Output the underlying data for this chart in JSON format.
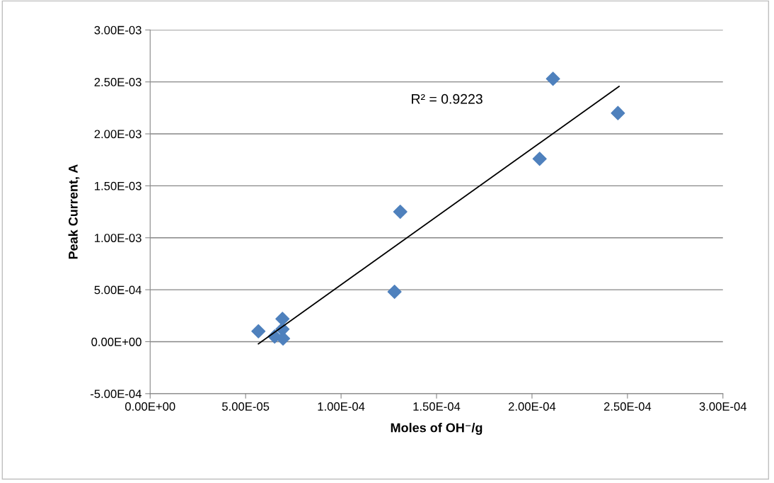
{
  "chart_data": {
    "type": "scatter",
    "xlabel": "Moles of OH⁻/g",
    "ylabel": "Peak Current, A",
    "series": [
      {
        "color": "#4f81bd",
        "marker": "diamond",
        "x": [
          5.67e-05,
          6.93e-05,
          6.93e-05,
          6.52e-05,
          6.96e-05,
          0.000128,
          0.000131,
          0.000204,
          0.000211,
          0.000245
        ],
        "values": [
          0.0001,
          0.00022,
          0.00012,
          5e-05,
          3e-05,
          0.00048,
          0.00125,
          0.00176,
          0.00253,
          0.0022
        ]
      },
      {
        "type": "line",
        "color": "#000000",
        "marker": "none",
        "x": [
          5.67e-05,
          0.0002456
        ],
        "values": [
          -2e-05,
          0.002457
        ]
      }
    ],
    "annotations": [
      "R² = 0.9223"
    ],
    "xlim": [
      0,
      0.0003
    ],
    "xticks": [
      {
        "value": 0,
        "label": "0.00E+00"
      },
      {
        "value": 5e-05,
        "label": "5.00E-05"
      },
      {
        "value": 0.0001,
        "label": "1.00E-04"
      },
      {
        "value": 0.00015,
        "label": "1.50E-04"
      },
      {
        "value": 0.0002,
        "label": "2.00E-04"
      },
      {
        "value": 0.00025,
        "label": "2.50E-04"
      },
      {
        "value": 0.0003,
        "label": "3.00E-04"
      }
    ],
    "ylim": [
      -0.0005,
      0.003
    ],
    "yticks": [
      {
        "value": -0.0005,
        "label": "-5.00E-04"
      },
      {
        "value": 0,
        "label": "0.00E+00"
      },
      {
        "value": 0.0005,
        "label": "5.00E-04"
      },
      {
        "value": 0.001,
        "label": "1.00E-03"
      },
      {
        "value": 0.0015,
        "label": "1.50E-03"
      },
      {
        "value": 0.002,
        "label": "2.00E-03"
      },
      {
        "value": 0.0025,
        "label": "2.50E-03"
      },
      {
        "value": 0.003,
        "label": "3.00E-03"
      }
    ],
    "grid": "y"
  }
}
